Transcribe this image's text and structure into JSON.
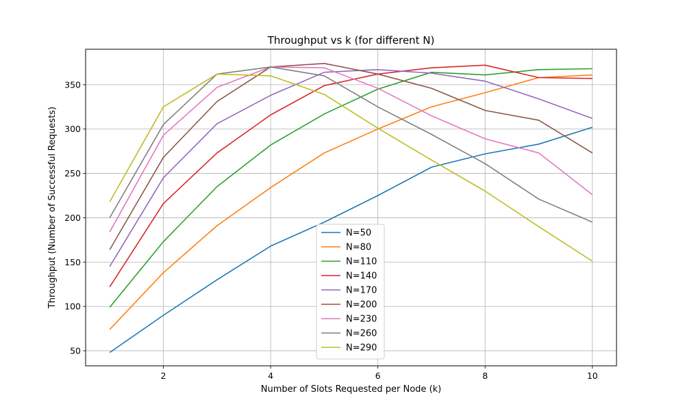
{
  "chart_data": {
    "type": "line",
    "title": "Throughput vs k (for different N)",
    "xlabel": "Number of Slots Requested per Node (k)",
    "ylabel": "Throughput (Number of Successful Requests)",
    "x": [
      1,
      2,
      3,
      4,
      5,
      6,
      7,
      8,
      9,
      10
    ],
    "xlim": [
      0.55,
      10.45
    ],
    "ylim": [
      33,
      390
    ],
    "xticks": [
      2,
      4,
      6,
      8,
      10
    ],
    "yticks": [
      50,
      100,
      150,
      200,
      250,
      300,
      350
    ],
    "grid": true,
    "legend_position": "lower-center",
    "series": [
      {
        "name": "N=50",
        "color": "#1f77b4",
        "values": [
          48,
          90,
          130,
          168,
          195,
          225,
          257,
          272,
          283,
          302
        ]
      },
      {
        "name": "N=80",
        "color": "#ff7f0e",
        "values": [
          74,
          138,
          191,
          234,
          273,
          300,
          325,
          341,
          358,
          361
        ]
      },
      {
        "name": "N=110",
        "color": "#2ca02c",
        "values": [
          99,
          173,
          235,
          282,
          317,
          345,
          364,
          361,
          367,
          368
        ]
      },
      {
        "name": "N=140",
        "color": "#d62728",
        "values": [
          122,
          216,
          273,
          316,
          349,
          362,
          369,
          372,
          358,
          357
        ]
      },
      {
        "name": "N=170",
        "color": "#9467bd",
        "values": [
          145,
          245,
          306,
          338,
          364,
          367,
          363,
          354,
          334,
          312
        ]
      },
      {
        "name": "N=200",
        "color": "#8c564b",
        "values": [
          164,
          268,
          331,
          370,
          374,
          362,
          346,
          321,
          310,
          273
        ]
      },
      {
        "name": "N=230",
        "color": "#e377c2",
        "values": [
          184,
          293,
          347,
          370,
          369,
          346,
          315,
          289,
          273,
          226
        ]
      },
      {
        "name": "N=260",
        "color": "#7f7f7f",
        "values": [
          200,
          305,
          362,
          370,
          360,
          325,
          294,
          261,
          221,
          195
        ]
      },
      {
        "name": "N=290",
        "color": "#bcbd22",
        "values": [
          218,
          325,
          362,
          360,
          339,
          301,
          265,
          230,
          190,
          151
        ]
      }
    ]
  }
}
